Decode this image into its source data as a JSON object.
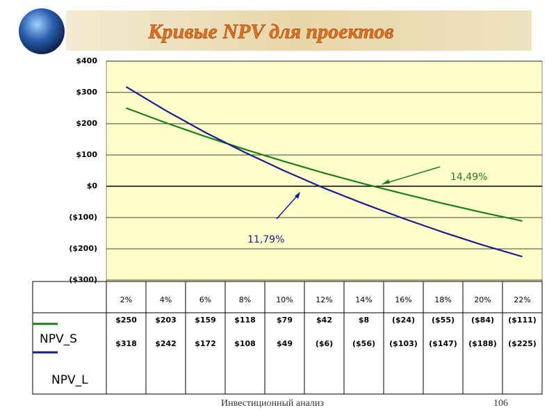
{
  "chart_data": {
    "type": "line",
    "title": "Кривые NPV для проектов",
    "categories": [
      "2%",
      "4%",
      "6%",
      "8%",
      "10%",
      "12%",
      "14%",
      "16%",
      "18%",
      "20%",
      "22%"
    ],
    "series": [
      {
        "name": "NPV_S",
        "color": "#1a7d1a",
        "values": [
          250,
          203,
          159,
          118,
          79,
          42,
          8,
          -24,
          -55,
          -84,
          -111
        ],
        "value_labels": [
          "$250",
          "$203",
          "$159",
          "$118",
          "$79",
          "$42",
          "$8",
          "($24)",
          "($55)",
          "($84)",
          "($111)"
        ]
      },
      {
        "name": "NPV_L",
        "color": "#1a1a8c",
        "values": [
          318,
          242,
          172,
          108,
          49,
          -6,
          -56,
          -103,
          -147,
          -188,
          -225
        ],
        "value_labels": [
          "$318",
          "$242",
          "$172",
          "$108",
          "$49",
          "($6)",
          "($56)",
          "($103)",
          "($147)",
          "($188)",
          "($225)"
        ]
      }
    ],
    "ylim": [
      -300,
      400
    ],
    "yticks": [
      {
        "value": -300,
        "label": "($300)"
      },
      {
        "value": -200,
        "label": "($200)"
      },
      {
        "value": -100,
        "label": "($100)"
      },
      {
        "value": 0,
        "label": "$0"
      },
      {
        "value": 100,
        "label": "$100"
      },
      {
        "value": 200,
        "label": "$200"
      },
      {
        "value": 300,
        "label": "$300"
      },
      {
        "value": 400,
        "label": "$400"
      }
    ],
    "grid": true,
    "annotations": [
      "14,49%",
      "11,79%"
    ],
    "footer": "Инвестиционный анализ",
    "page_number": "106"
  }
}
